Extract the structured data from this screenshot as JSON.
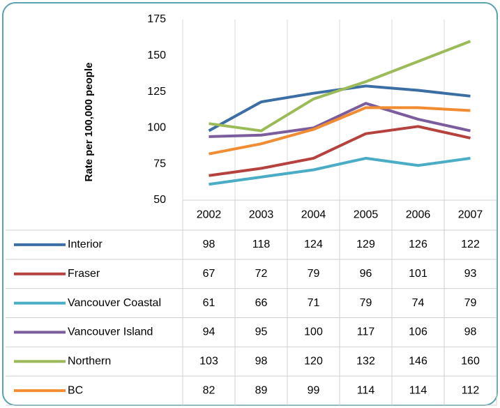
{
  "chart_data": {
    "type": "line",
    "y_label": "Rate per 100,000 people",
    "categories": [
      "2002",
      "2003",
      "2004",
      "2005",
      "2006",
      "2007"
    ],
    "series": [
      {
        "name": "Interior",
        "color": "#3a6ea5",
        "values": [
          98,
          118,
          124,
          129,
          126,
          122
        ]
      },
      {
        "name": "Fraser",
        "color": "#b5423e",
        "values": [
          67,
          72,
          79,
          96,
          101,
          93
        ]
      },
      {
        "name": "Vancouver Coastal",
        "color": "#4bacc6",
        "values": [
          61,
          66,
          71,
          79,
          74,
          79
        ]
      },
      {
        "name": "Vancouver Island",
        "color": "#7b5c9c",
        "values": [
          94,
          95,
          100,
          117,
          106,
          98
        ]
      },
      {
        "name": "Northern",
        "color": "#9bbb59",
        "values": [
          103,
          98,
          120,
          132,
          146,
          160
        ]
      },
      {
        "name": "BC",
        "color": "#f18c33",
        "values": [
          82,
          89,
          99,
          114,
          114,
          112
        ]
      }
    ],
    "ylim": [
      50,
      175
    ],
    "yticks": [
      50,
      75,
      100,
      125,
      150,
      175
    ],
    "grid": "vertical",
    "data_table": true
  }
}
